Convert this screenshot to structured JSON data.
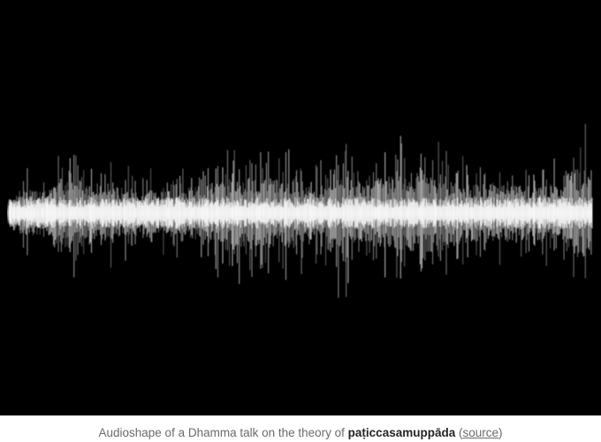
{
  "figure": {
    "background_color": "#000000",
    "waveform_color": "#ffffff",
    "caption": {
      "prefix": "Audioshape of a Dhamma talk on the theory of ",
      "term": "paṭiccasamuppāda",
      "open_paren": " (",
      "link_label": "source",
      "close_paren": ")"
    }
  }
}
